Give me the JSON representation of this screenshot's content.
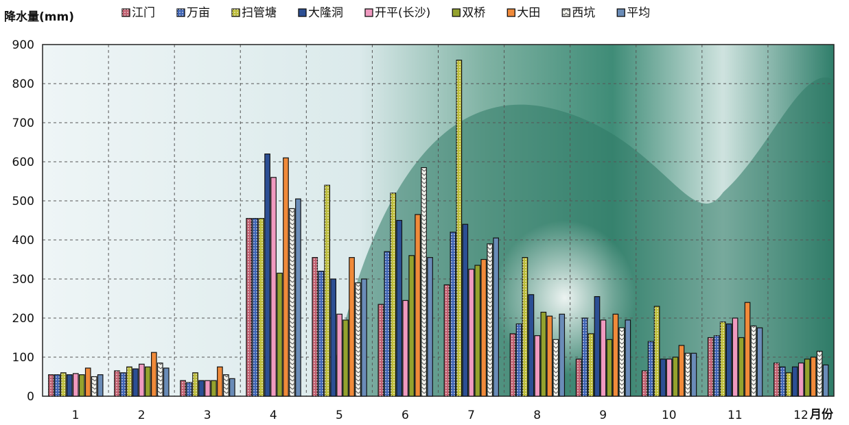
{
  "chart_data": {
    "type": "bar",
    "ylabel": "降水量(mm)",
    "xlabel": "月份",
    "ylim": [
      0,
      900
    ],
    "yticks": [
      "0",
      "100",
      "200",
      "300",
      "400",
      "500",
      "600",
      "700",
      "800",
      "900"
    ],
    "categories": [
      "1",
      "2",
      "3",
      "4",
      "5",
      "6",
      "7",
      "8",
      "9",
      "10",
      "11",
      "12"
    ],
    "grid": true,
    "legend_position": "top",
    "series": [
      {
        "name": "江门",
        "color": "#c06070",
        "pattern": "dots",
        "values": [
          55,
          65,
          40,
          455,
          355,
          235,
          285,
          160,
          95,
          65,
          150,
          85
        ]
      },
      {
        "name": "万亩",
        "color": "#3f64b4",
        "pattern": "dots",
        "values": [
          55,
          60,
          35,
          455,
          320,
          370,
          420,
          185,
          200,
          140,
          155,
          75
        ]
      },
      {
        "name": "扫管塘",
        "color": "#bcbc3a",
        "pattern": "dots",
        "values": [
          60,
          75,
          60,
          455,
          540,
          520,
          860,
          355,
          160,
          230,
          190,
          60
        ]
      },
      {
        "name": "大隆洞",
        "color": "#2c4f94",
        "pattern": "solid",
        "values": [
          55,
          70,
          40,
          620,
          300,
          450,
          440,
          260,
          255,
          95,
          185,
          75
        ]
      },
      {
        "name": "开平(长沙)",
        "color": "#f09ac0",
        "pattern": "solid",
        "values": [
          58,
          82,
          40,
          560,
          210,
          245,
          325,
          155,
          195,
          95,
          200,
          85
        ]
      },
      {
        "name": "双桥",
        "color": "#94a22e",
        "pattern": "solid",
        "values": [
          55,
          75,
          40,
          315,
          195,
          360,
          335,
          215,
          145,
          100,
          150,
          95
        ]
      },
      {
        "name": "大田",
        "color": "#f08a3a",
        "pattern": "solid",
        "values": [
          72,
          112,
          75,
          610,
          355,
          465,
          350,
          205,
          210,
          130,
          240,
          100
        ]
      },
      {
        "name": "西坑",
        "color": "#f4f4ee",
        "pattern": "zigzag",
        "values": [
          50,
          85,
          55,
          480,
          290,
          585,
          390,
          145,
          175,
          110,
          180,
          115
        ]
      },
      {
        "name": "平均",
        "color": "#6a8cb8",
        "pattern": "solid",
        "values": [
          55,
          72,
          45,
          505,
          300,
          355,
          405,
          210,
          195,
          110,
          175,
          80
        ]
      }
    ]
  }
}
